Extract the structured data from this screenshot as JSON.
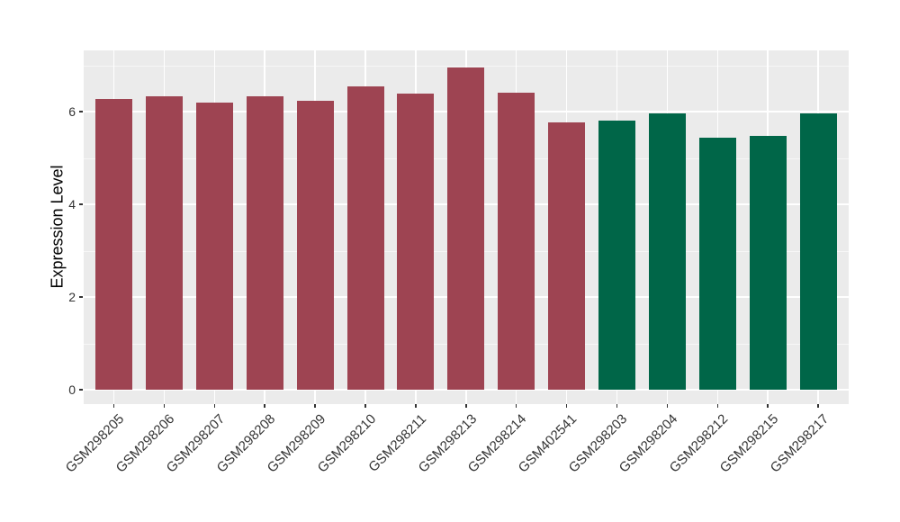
{
  "chart_data": {
    "type": "bar",
    "title": "",
    "xlabel": "",
    "ylabel": "Expression Level",
    "categories": [
      "GSM298205",
      "GSM298206",
      "GSM298207",
      "GSM298208",
      "GSM298209",
      "GSM298210",
      "GSM298211",
      "GSM298213",
      "GSM298214",
      "GSM402541",
      "GSM298203",
      "GSM298204",
      "GSM298212",
      "GSM298215",
      "GSM298217"
    ],
    "values": [
      6.27,
      6.33,
      6.19,
      6.33,
      6.24,
      6.54,
      6.39,
      6.95,
      6.41,
      5.77,
      5.81,
      5.97,
      5.43,
      5.48,
      5.97
    ],
    "bar_colors": [
      "#9E4452",
      "#9E4452",
      "#9E4452",
      "#9E4452",
      "#9E4452",
      "#9E4452",
      "#9E4452",
      "#9E4452",
      "#9E4452",
      "#9E4452",
      "#006648",
      "#006648",
      "#006648",
      "#006648",
      "#006648"
    ],
    "y_ticks": [
      0,
      2,
      4,
      6
    ],
    "y_minor_ticks": [
      1,
      3,
      5,
      7
    ],
    "ylim": [
      -0.35,
      7.32
    ],
    "grid": "horizontal major+minor, vertical major at category centers",
    "legend": "none",
    "colors": {
      "group_a_bar": "#9E4452",
      "group_b_bar": "#006648",
      "panel_bg": "#EBEBEB",
      "gridline": "#FFFFFF",
      "axis_text": "#333333"
    }
  }
}
